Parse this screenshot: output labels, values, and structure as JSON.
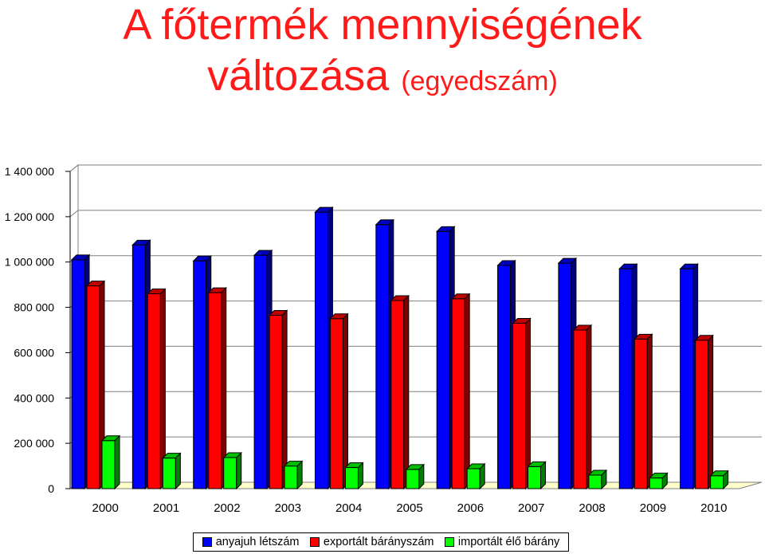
{
  "title": {
    "line1": "A főtermék mennyiségének",
    "line2_main": "változása",
    "line2_sub": "(egyedszám)"
  },
  "colors": {
    "series": [
      "#0000ff",
      "#ff0000",
      "#00ff00"
    ],
    "floor": "#ffffcc"
  },
  "chart_data": {
    "type": "bar",
    "categories": [
      "2000",
      "2001",
      "2002",
      "2003",
      "2004",
      "2005",
      "2006",
      "2007",
      "2008",
      "2009",
      "2010"
    ],
    "series": [
      {
        "name": "anyajuh létszám",
        "values": [
          1010000,
          1075000,
          1005000,
          1030000,
          1220000,
          1165000,
          1135000,
          985000,
          995000,
          970000,
          970000
        ]
      },
      {
        "name": "exportált bárányszám",
        "values": [
          895000,
          860000,
          865000,
          765000,
          750000,
          830000,
          838000,
          730000,
          700000,
          660000,
          655000
        ]
      },
      {
        "name": "importált élő bárány",
        "values": [
          212000,
          135000,
          137000,
          100000,
          93000,
          85000,
          88000,
          97000,
          60000,
          47000,
          57000
        ]
      }
    ],
    "ylim": [
      0,
      1400000
    ],
    "yticks": [
      "0",
      "200 000",
      "400 000",
      "600 000",
      "800 000",
      "1 000 000",
      "1 200 000",
      "1 400 000"
    ],
    "ytick_values": [
      0,
      200000,
      400000,
      600000,
      800000,
      1000000,
      1200000,
      1400000
    ],
    "grid": true,
    "legend_position": "bottom",
    "three_d": true
  }
}
